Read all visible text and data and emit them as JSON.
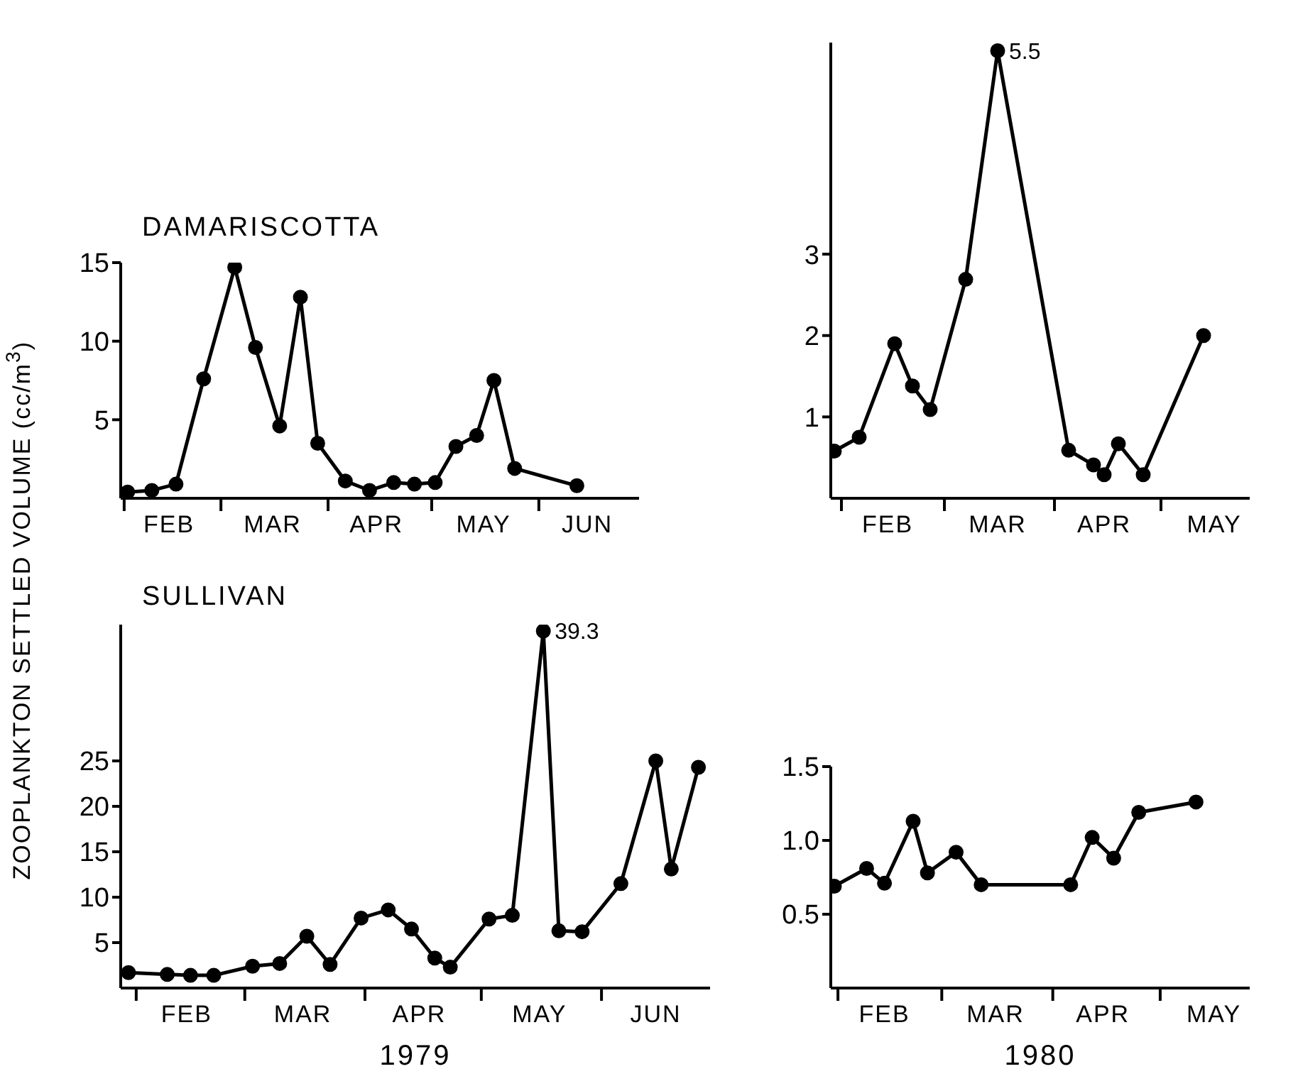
{
  "chart_data": [
    {
      "type": "line",
      "title": "DAMARISCOTTA",
      "ylabel": "ZOOPLANKTON SETTLED VOLUME (cc/m$^{3}$)",
      "color": "#000000",
      "marker": "circle",
      "line_style": "solid",
      "x": [
        "1979-02-02",
        "1979-02-09",
        "1979-02-16",
        "1979-02-24",
        "1979-03-05",
        "1979-03-11",
        "1979-03-18",
        "1979-03-24",
        "1979-03-29",
        "1979-04-06",
        "1979-04-13",
        "1979-04-20",
        "1979-04-26",
        "1979-05-02",
        "1979-05-08",
        "1979-05-14",
        "1979-05-19",
        "1979-05-25",
        "1979-06-12"
      ],
      "values": [
        0.4,
        0.5,
        0.9,
        7.6,
        14.7,
        9.6,
        4.6,
        12.8,
        3.5,
        1.1,
        0.5,
        1.0,
        0.9,
        1.0,
        3.3,
        4.0,
        7.5,
        1.9,
        0.8
      ],
      "xlim": [
        "1979-01-31",
        "1979-06-30"
      ],
      "xticks": [
        {
          "value": "1979-02-01",
          "label": null
        },
        {
          "value": "1979-02-14",
          "label": "FEB"
        },
        {
          "value": "1979-03-01",
          "label": null
        },
        {
          "value": "1979-03-16",
          "label": "MAR"
        },
        {
          "value": "1979-04-01",
          "label": null
        },
        {
          "value": "1979-04-15",
          "label": "APR"
        },
        {
          "value": "1979-05-01",
          "label": null
        },
        {
          "value": "1979-05-16",
          "label": "MAY"
        },
        {
          "value": "1979-06-01",
          "label": null
        },
        {
          "value": "1979-06-15",
          "label": "JUN"
        }
      ],
      "ylim": [
        0,
        15
      ],
      "yticks": [
        5,
        10,
        15
      ]
    },
    {
      "type": "line",
      "color": "#000000",
      "marker": "circle",
      "line_style": "solid",
      "x": [
        "1980-01-30",
        "1980-02-06",
        "1980-02-16",
        "1980-02-21",
        "1980-02-26",
        "1980-03-07",
        "1980-03-16",
        "1980-04-05",
        "1980-04-12",
        "1980-04-15",
        "1980-04-19",
        "1980-04-26",
        "1980-05-13"
      ],
      "values": [
        0.58,
        0.75,
        1.9,
        1.38,
        1.09,
        2.69,
        5.5,
        0.59,
        0.41,
        0.29,
        0.67,
        0.29,
        2.0
      ],
      "value_labels": [
        null,
        null,
        null,
        null,
        null,
        null,
        "5.5",
        null,
        null,
        null,
        null,
        null,
        null
      ],
      "xlim": [
        "1980-01-29",
        "1980-05-26"
      ],
      "xticks": [
        {
          "value": "1980-02-01",
          "label": null
        },
        {
          "value": "1980-02-14",
          "label": "FEB"
        },
        {
          "value": "1980-03-01",
          "label": null
        },
        {
          "value": "1980-03-16",
          "label": "MAR"
        },
        {
          "value": "1980-04-01",
          "label": null
        },
        {
          "value": "1980-04-15",
          "label": "APR"
        },
        {
          "value": "1980-05-01",
          "label": null
        },
        {
          "value": "1980-05-16",
          "label": "MAY"
        }
      ],
      "ylim": [
        0,
        5.6
      ],
      "yticks": [
        1,
        2,
        3
      ]
    },
    {
      "type": "line",
      "title": "SULLIVAN",
      "xlabel": "1979",
      "color": "#000000",
      "marker": "circle",
      "line_style": "solid",
      "x": [
        "1979-01-30",
        "1979-02-09",
        "1979-02-15",
        "1979-02-21",
        "1979-03-03",
        "1979-03-10",
        "1979-03-17",
        "1979-03-23",
        "1979-03-31",
        "1979-04-07",
        "1979-04-13",
        "1979-04-19",
        "1979-04-23",
        "1979-05-03",
        "1979-05-09",
        "1979-05-17",
        "1979-05-21",
        "1979-05-27",
        "1979-06-06",
        "1979-06-15",
        "1979-06-19",
        "1979-06-26"
      ],
      "values": [
        1.7,
        1.5,
        1.4,
        1.4,
        2.4,
        2.7,
        5.7,
        2.6,
        7.7,
        8.6,
        6.5,
        3.3,
        2.3,
        7.6,
        8.0,
        39.3,
        6.3,
        6.2,
        11.5,
        25,
        13.1,
        24.3
      ],
      "value_labels": [
        null,
        null,
        null,
        null,
        null,
        null,
        null,
        null,
        null,
        null,
        null,
        null,
        null,
        null,
        null,
        "39.3",
        null,
        null,
        null,
        null,
        null,
        null
      ],
      "xlim": [
        "1979-01-28",
        "1979-06-29"
      ],
      "xticks": [
        {
          "value": "1979-02-01",
          "label": null
        },
        {
          "value": "1979-02-14",
          "label": "FEB"
        },
        {
          "value": "1979-03-01",
          "label": null
        },
        {
          "value": "1979-03-16",
          "label": "MAR"
        },
        {
          "value": "1979-04-01",
          "label": null
        },
        {
          "value": "1979-04-15",
          "label": "APR"
        },
        {
          "value": "1979-05-01",
          "label": null
        },
        {
          "value": "1979-05-16",
          "label": "MAY"
        },
        {
          "value": "1979-06-01",
          "label": null
        },
        {
          "value": "1979-06-15",
          "label": "JUN"
        }
      ],
      "ylim": [
        0,
        40
      ],
      "yticks": [
        5,
        10,
        15,
        20,
        25
      ]
    },
    {
      "type": "line",
      "xlabel": "1980",
      "color": "#000000",
      "marker": "circle",
      "line_style": "solid",
      "x": [
        "1980-01-31",
        "1980-02-09",
        "1980-02-14",
        "1980-02-22",
        "1980-02-26",
        "1980-03-05",
        "1980-03-12",
        "1980-04-06",
        "1980-04-12",
        "1980-04-18",
        "1980-04-25",
        "1980-05-11"
      ],
      "values": [
        0.69,
        0.81,
        0.71,
        1.13,
        0.78,
        0.92,
        0.7,
        0.7,
        1.02,
        0.88,
        1.19,
        1.26
      ],
      "xlim": [
        "1980-01-30",
        "1980-05-26"
      ],
      "xticks": [
        {
          "value": "1980-02-01",
          "label": null
        },
        {
          "value": "1980-02-14",
          "label": "FEB"
        },
        {
          "value": "1980-03-01",
          "label": null
        },
        {
          "value": "1980-03-16",
          "label": "MAR"
        },
        {
          "value": "1980-04-01",
          "label": null
        },
        {
          "value": "1980-04-15",
          "label": "APR"
        },
        {
          "value": "1980-05-01",
          "label": null
        },
        {
          "value": "1980-05-16",
          "label": "MAY"
        }
      ],
      "ylim": [
        0,
        1.5
      ],
      "yticks": [
        0.5,
        {
          "value": 1,
          "label": "1.0"
        },
        1.5
      ]
    }
  ]
}
